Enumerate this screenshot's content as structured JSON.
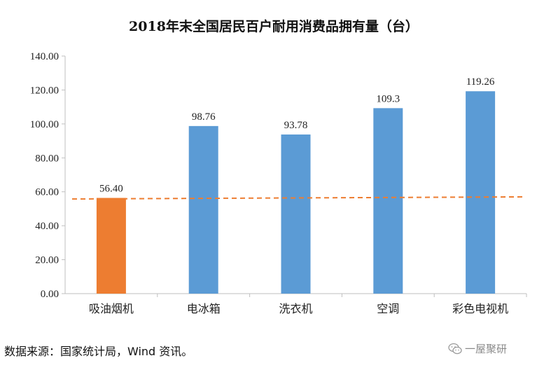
{
  "colors": {
    "highlight_bar": "#ED7D31",
    "bar": "#5B9BD5",
    "reference_line": "#ED7D31",
    "axis": "#BFBFBF"
  },
  "chart_data": {
    "type": "bar",
    "title": "2018年末全国居民百户耐用消费品拥有量（台）",
    "xlabel": "",
    "ylabel": "",
    "categories": [
      "吸油烟机",
      "电冰箱",
      "洗衣机",
      "空调",
      "彩色电视机"
    ],
    "values": [
      56.4,
      98.76,
      93.78,
      109.3,
      119.26
    ],
    "data_labels": [
      "56.40",
      "98.76",
      "93.78",
      "109.3",
      "119.26"
    ],
    "highlight_index": 0,
    "reference_line": {
      "value": 56.4,
      "style": "dashed"
    },
    "ylim": [
      0,
      140
    ],
    "yticks": [
      0,
      20,
      40,
      60,
      80,
      100,
      120,
      140
    ],
    "ytick_labels": [
      "0.00",
      "20.00",
      "40.00",
      "60.00",
      "80.00",
      "100.00",
      "120.00",
      "140.00"
    ],
    "grid": false,
    "legend": "none"
  },
  "footer": {
    "source": "数据来源：国家统计局，Wind 资讯。",
    "watermark_text": "一屋聚研",
    "watermark_icon": "wechat-icon"
  }
}
